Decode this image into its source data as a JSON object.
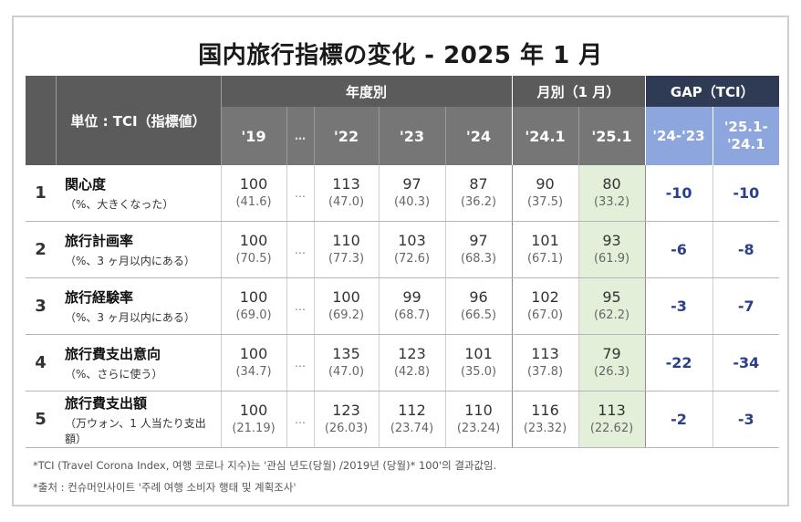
{
  "title": "国内旅行指標の変化 - 2025 年 1 月",
  "header": {
    "unit_label": "単位 : TCI（指標値）",
    "group_yearly": "年度別",
    "group_monthly": "月別（1 月）",
    "group_gap": "GAP（TCI）",
    "col_19": "'19",
    "col_dots": "…",
    "col_22": "'22",
    "col_23": "'23",
    "col_24": "'24",
    "col_241": "'24.1",
    "col_251": "'25.1",
    "gap_a": "'24-'23",
    "gap_b_line1": "'25.1-",
    "gap_b_line2": "'24.1"
  },
  "colors": {
    "header_dark": "#5b5b5b",
    "header_mid": "#767676",
    "gap_dark": "#2f3b55",
    "gap_light": "#8da6de",
    "highlight": "#e3efd9",
    "gap_text": "#2b3f8c"
  },
  "chart_data": {
    "type": "table",
    "title": "国内旅行指標の変化 - 2025 年 1 月",
    "columns": [
      "'19",
      "…",
      "'22",
      "'23",
      "'24",
      "'24.1",
      "'25.1",
      "'24-'23",
      "'25.1-'24.1"
    ],
    "rows": [
      {
        "no": "1",
        "label": "関心度",
        "sub": "（%、大きくなった）",
        "v19": "100",
        "p19": "(41.6)",
        "dots": "…",
        "v22": "113",
        "p22": "(47.0)",
        "v23": "97",
        "p23": "(40.3)",
        "v24": "87",
        "p24": "(36.2)",
        "v241": "90",
        "p241": "(37.5)",
        "v251": "80",
        "p251": "(33.2)",
        "gap_a": "-10",
        "gap_b": "-10"
      },
      {
        "no": "2",
        "label": "旅行計画率",
        "sub": "（%、3 ヶ月以内にある）",
        "v19": "100",
        "p19": "(70.5)",
        "dots": "…",
        "v22": "110",
        "p22": "(77.3)",
        "v23": "103",
        "p23": "(72.6)",
        "v24": "97",
        "p24": "(68.3)",
        "v241": "101",
        "p241": "(67.1)",
        "v251": "93",
        "p251": "(61.9)",
        "gap_a": "-6",
        "gap_b": "-8"
      },
      {
        "no": "3",
        "label": "旅行経験率",
        "sub": "（%、3 ヶ月以内にある）",
        "v19": "100",
        "p19": "(69.0)",
        "dots": "…",
        "v22": "100",
        "p22": "(69.2)",
        "v23": "99",
        "p23": "(68.7)",
        "v24": "96",
        "p24": "(66.5)",
        "v241": "102",
        "p241": "(67.0)",
        "v251": "95",
        "p251": "(62.2)",
        "gap_a": "-3",
        "gap_b": "-7"
      },
      {
        "no": "4",
        "label": "旅行費支出意向",
        "sub": "（%、さらに使う）",
        "v19": "100",
        "p19": "(34.7)",
        "dots": "…",
        "v22": "135",
        "p22": "(47.0)",
        "v23": "123",
        "p23": "(42.8)",
        "v24": "101",
        "p24": "(35.0)",
        "v241": "113",
        "p241": "(37.8)",
        "v251": "79",
        "p251": "(26.3)",
        "gap_a": "-22",
        "gap_b": "-34"
      },
      {
        "no": "5",
        "label": "旅行費支出額",
        "sub": "（万ウォン、1 人当たり支出額）",
        "v19": "100",
        "p19": "(21.19)",
        "dots": "…",
        "v22": "123",
        "p22": "(26.03)",
        "v23": "112",
        "p23": "(23.74)",
        "v24": "110",
        "p24": "(23.24)",
        "v241": "116",
        "p241": "(23.32)",
        "v251": "113",
        "p251": "(22.62)",
        "gap_a": "-2",
        "gap_b": "-3"
      }
    ]
  },
  "notes": {
    "note1": "*TCI (Travel Corona Index, 여행 코로나 지수)는 '관심 년도(당월) /2019년 (당월)* 100'의 결과값임.",
    "note2": "*출처 : 컨슈머인사이트 '주례 여행 소비자 행태 및 계획조사'"
  }
}
